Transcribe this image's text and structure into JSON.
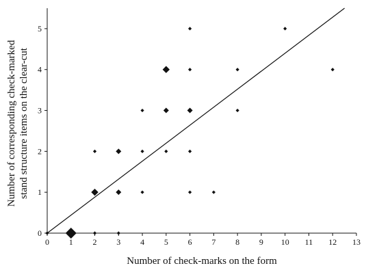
{
  "chart_data": {
    "type": "scatter",
    "title": "",
    "xlabel": "Number of check-marks on the form",
    "ylabel": [
      "Number of corresponding check-marked",
      "stand structure items on the clear-cut"
    ],
    "xlim": [
      0,
      13
    ],
    "ylim": [
      0,
      5.5
    ],
    "x_ticks": [
      0,
      1,
      2,
      3,
      4,
      5,
      6,
      7,
      8,
      9,
      10,
      11,
      12,
      13
    ],
    "y_ticks": [
      0,
      1,
      2,
      3,
      4,
      5
    ],
    "grid": false,
    "legend": "none",
    "marker": "diamond",
    "marker_color": "#111111",
    "points": [
      {
        "x": 0,
        "y": 0,
        "size": "small"
      },
      {
        "x": 1,
        "y": 0,
        "size": "xlarge"
      },
      {
        "x": 2,
        "y": 0,
        "size": "small"
      },
      {
        "x": 3,
        "y": 0,
        "size": "small"
      },
      {
        "x": 2,
        "y": 1,
        "size": "large"
      },
      {
        "x": 3,
        "y": 1,
        "size": "medium"
      },
      {
        "x": 4,
        "y": 1,
        "size": "small"
      },
      {
        "x": 6,
        "y": 1,
        "size": "small"
      },
      {
        "x": 7,
        "y": 1,
        "size": "small"
      },
      {
        "x": 2,
        "y": 2,
        "size": "small"
      },
      {
        "x": 3,
        "y": 2,
        "size": "medium"
      },
      {
        "x": 4,
        "y": 2,
        "size": "small"
      },
      {
        "x": 5,
        "y": 2,
        "size": "small"
      },
      {
        "x": 6,
        "y": 2,
        "size": "small"
      },
      {
        "x": 4,
        "y": 3,
        "size": "small"
      },
      {
        "x": 5,
        "y": 3,
        "size": "medium"
      },
      {
        "x": 6,
        "y": 3,
        "size": "medium"
      },
      {
        "x": 8,
        "y": 3,
        "size": "small"
      },
      {
        "x": 5,
        "y": 4,
        "size": "large"
      },
      {
        "x": 6,
        "y": 4,
        "size": "small"
      },
      {
        "x": 8,
        "y": 4,
        "size": "small"
      },
      {
        "x": 12,
        "y": 4,
        "size": "small"
      },
      {
        "x": 6,
        "y": 5,
        "size": "small"
      },
      {
        "x": 10,
        "y": 5,
        "size": "small"
      }
    ],
    "trend_line": {
      "type": "linear",
      "from": [
        0,
        0
      ],
      "to": [
        12.5,
        5.5
      ]
    }
  }
}
